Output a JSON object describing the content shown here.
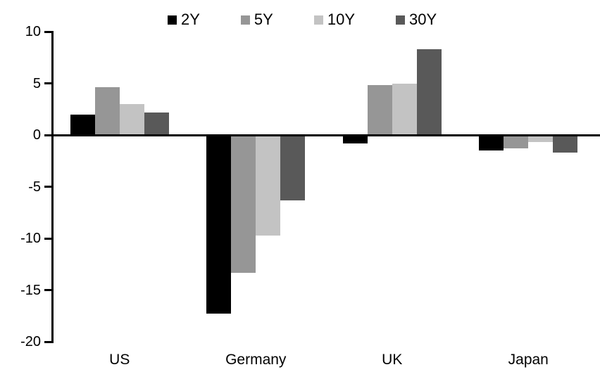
{
  "chart_data": {
    "type": "bar",
    "title": "",
    "xlabel": "",
    "ylabel": "",
    "categories": [
      "US",
      "Germany",
      "UK",
      "Japan"
    ],
    "series": [
      {
        "name": "2Y",
        "color": "#000000",
        "values": [
          2.0,
          -17.3,
          -0.8,
          -1.5
        ]
      },
      {
        "name": "5Y",
        "color": "#969696",
        "values": [
          4.6,
          -13.3,
          4.8,
          -1.3
        ]
      },
      {
        "name": "10Y",
        "color": "#c3c3c3",
        "values": [
          3.0,
          -9.7,
          5.0,
          -0.7
        ]
      },
      {
        "name": "30Y",
        "color": "#595959",
        "values": [
          2.2,
          -6.3,
          8.3,
          -1.7
        ]
      }
    ],
    "ylim": [
      -20,
      10
    ],
    "yticks": [
      10,
      5,
      0,
      -5,
      -10,
      -15,
      -20
    ],
    "grid": false,
    "legend_position": "top",
    "axis_color": "#000000",
    "background_color": "#ffffff"
  }
}
